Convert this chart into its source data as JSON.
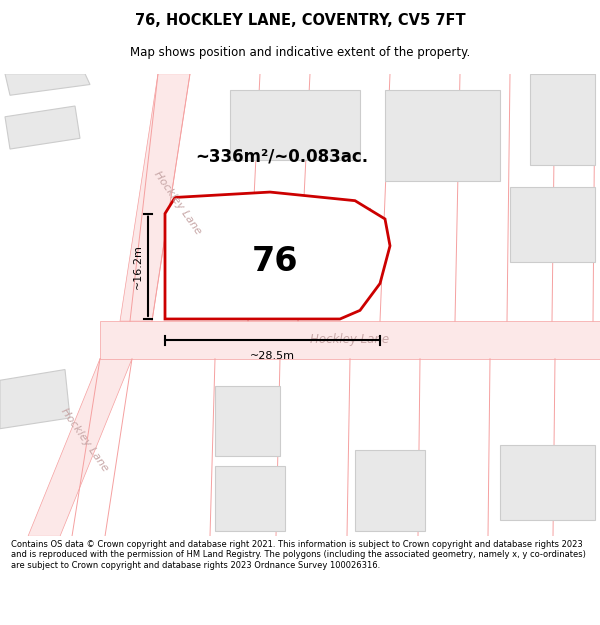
{
  "title": "76, HOCKLEY LANE, COVENTRY, CV5 7FT",
  "subtitle": "Map shows position and indicative extent of the property.",
  "footer": "Contains OS data © Crown copyright and database right 2021. This information is subject to Crown copyright and database rights 2023 and is reproduced with the permission of HM Land Registry. The polygons (including the associated geometry, namely x, y co-ordinates) are subject to Crown copyright and database rights 2023 Ordnance Survey 100026316.",
  "map_bg": "#ffffff",
  "road_line_color": "#f5a0a0",
  "road_fill_color": "#fce8e8",
  "building_fill": "#e8e8e8",
  "building_edge": "#cccccc",
  "highlight_edge": "#cc0000",
  "road_label_color": "#c8a8a8",
  "footer_bg": "#f0f0f0",
  "area_text": "~336m²/~0.083ac.",
  "number_text": "76",
  "dim_width": "~28.5m",
  "dim_height": "~16.2m",
  "road_name_diag1": "Hockley Lane",
  "road_name_diag2": "Hockley Lane",
  "road_name_bottom": "Hockley Lane"
}
